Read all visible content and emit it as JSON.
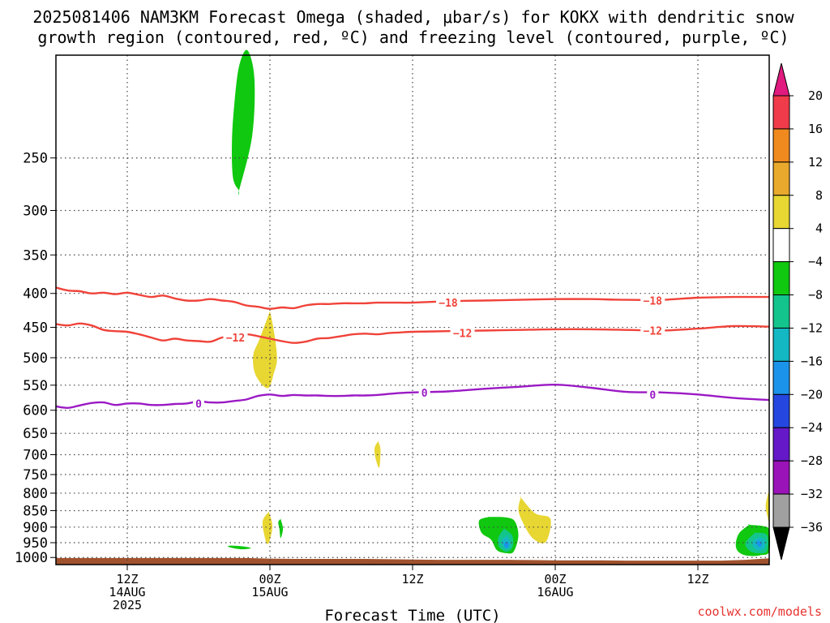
{
  "title": {
    "line1": "2025081406 NAM3KM Forecast Omega (shaded, μbar/s) for KOKX with dendritic snow",
    "line2": "growth region (contoured, red, ºC) and freezing level (contoured, purple, ºC)"
  },
  "credit": "coolwx.com/models",
  "chart_data": {
    "type": "heatmap",
    "title": "2025081406 NAM3KM Forecast Omega (shaded, μbar/s) for KOKX with dendritic snow growth region (contoured, red, ºC) and freezing level (contoured, purple, ºC)",
    "xlabel": "Forecast Time (UTC)",
    "ylabel": "",
    "x_units": "hours after 2025-08-14 06Z",
    "xlim": [
      0,
      60
    ],
    "ylim": [
      1025,
      175
    ],
    "y_scale": "log-pressure",
    "grid": true,
    "y_ticks": [
      250,
      300,
      350,
      400,
      450,
      500,
      550,
      600,
      650,
      700,
      750,
      800,
      850,
      900,
      950,
      1000
    ],
    "x_ticks": [
      {
        "x": 6,
        "lines": [
          "12Z",
          "14AUG",
          "2025"
        ]
      },
      {
        "x": 18,
        "lines": [
          "00Z",
          "15AUG"
        ]
      },
      {
        "x": 30,
        "lines": [
          "12Z"
        ]
      },
      {
        "x": 42,
        "lines": [
          "00Z",
          "16AUG"
        ]
      },
      {
        "x": 54,
        "lines": [
          "12Z"
        ]
      }
    ],
    "colorbar": {
      "labels": [
        "20",
        "16",
        "12",
        "8",
        "4",
        "−4",
        "−8",
        "−12",
        "−16",
        "−20",
        "−24",
        "−28",
        "−32",
        "−36"
      ],
      "bins": [
        {
          "color": "#ef3b4a"
        },
        {
          "color": "#f08a1e"
        },
        {
          "color": "#e9a92c"
        },
        {
          "color": "#e8d632"
        },
        {
          "color": "#ffffff"
        },
        {
          "color": "#0fc80f"
        },
        {
          "color": "#13c58c"
        },
        {
          "color": "#13b8c3"
        },
        {
          "color": "#1c93ea"
        },
        {
          "color": "#2547e0"
        },
        {
          "color": "#6418c8"
        },
        {
          "color": "#9a13b8"
        },
        {
          "color": "#a0a0a0"
        }
      ],
      "top_arrow_color": "#e01a7e",
      "bottom_arrow_color": "#000000"
    },
    "contours": [
      {
        "name": "-18",
        "color": "#f0433a",
        "x": [
          0,
          1,
          2,
          3,
          4,
          5,
          6,
          7,
          8,
          9,
          10,
          11,
          12,
          13,
          14,
          15,
          16,
          17,
          18,
          19,
          20,
          21,
          22,
          23,
          24,
          25,
          26,
          27,
          28,
          29,
          30,
          33,
          36,
          39,
          42,
          45,
          48,
          51,
          54,
          57,
          60
        ],
        "y": [
          392,
          396,
          397,
          400,
          399,
          401,
          399,
          402,
          405,
          403,
          407,
          410,
          410,
          408,
          410,
          412,
          417,
          419,
          422,
          420,
          421,
          417,
          415,
          415,
          414,
          414,
          414,
          413,
          413,
          413,
          413,
          411,
          410,
          409,
          408,
          408,
          409,
          409,
          406,
          405,
          405
        ],
        "labels": [
          {
            "x": 33,
            "y": 413,
            "text": "−18"
          },
          {
            "x": 50.2,
            "y": 410,
            "text": "−18"
          }
        ]
      },
      {
        "name": "-12",
        "color": "#f0433a",
        "x": [
          0,
          1,
          2,
          3,
          4,
          5,
          6,
          7,
          8,
          9,
          10,
          11,
          12,
          13,
          14,
          15,
          16,
          17,
          18,
          19,
          20,
          21,
          22,
          23,
          24,
          25,
          26,
          27,
          28,
          29,
          30,
          33,
          36,
          39,
          42,
          45,
          48,
          51,
          54,
          57,
          60
        ],
        "y": [
          445,
          447,
          444,
          447,
          454,
          456,
          457,
          461,
          466,
          471,
          468,
          471,
          472,
          473,
          466,
          464,
          461,
          464,
          468,
          472,
          475,
          473,
          468,
          467,
          464,
          461,
          460,
          461,
          459,
          458,
          457,
          456,
          455,
          454,
          453,
          453,
          454,
          455,
          452,
          448,
          449
        ],
        "labels": [
          {
            "x": 15.1,
            "y": 466,
            "text": "−12"
          },
          {
            "x": 34.2,
            "y": 459,
            "text": "−12"
          },
          {
            "x": 50.2,
            "y": 455,
            "text": "−12"
          }
        ]
      },
      {
        "name": "0",
        "color": "#9b19c4",
        "x": [
          0,
          1,
          2,
          3,
          4,
          5,
          6,
          7,
          8,
          9,
          10,
          11,
          12,
          13,
          14,
          15,
          16,
          17,
          18,
          19,
          20,
          21,
          22,
          23,
          24,
          25,
          26,
          27,
          28,
          29,
          30,
          33,
          36,
          39,
          42,
          45,
          48,
          51,
          54,
          57,
          60
        ],
        "y": [
          592,
          595,
          590,
          585,
          584,
          589,
          586,
          586,
          589,
          589,
          587,
          586,
          582,
          584,
          584,
          581,
          578,
          571,
          568,
          571,
          569,
          570,
          570,
          571,
          571,
          570,
          570,
          569,
          567,
          565,
          564,
          562,
          557,
          553,
          549,
          555,
          563,
          564,
          568,
          575,
          579
        ],
        "labels": [
          {
            "x": 12,
            "y": 586,
            "text": "0"
          },
          {
            "x": 31,
            "y": 564,
            "text": "0"
          },
          {
            "x": 50.2,
            "y": 568,
            "text": "0"
          }
        ]
      }
    ],
    "shaded_regions": [
      {
        "range": "-8 to -4",
        "color": "#0fc80f",
        "x": [
          15.4,
          16.5,
          16.7,
          16.1,
          15.4,
          15.0,
          14.8,
          14.9,
          15.4
        ],
        "y": [
          280,
          232,
          190,
          172,
          182,
          208,
          238,
          268,
          280
        ]
      },
      {
        "range": "4 to 8",
        "color": "#e8d632",
        "x": [
          18.0,
          18.3,
          18.6,
          18.3,
          17.9,
          17.3,
          16.7,
          16.6,
          17.1,
          17.6,
          18.0
        ],
        "y": [
          425,
          452,
          500,
          530,
          555,
          548,
          525,
          495,
          470,
          445,
          425
        ]
      },
      {
        "range": "4 to 8",
        "color": "#e8d632",
        "x": [
          27.1,
          27.3,
          27.2,
          26.9,
          26.8,
          27.1
        ],
        "y": [
          668,
          688,
          732,
          710,
          685,
          668
        ]
      },
      {
        "range": "4 to 8",
        "color": "#e8d632",
        "x": [
          17.9,
          18.2,
          18.1,
          17.8,
          17.5,
          17.4,
          17.9
        ],
        "y": [
          853,
          890,
          925,
          955,
          920,
          880,
          853
        ]
      },
      {
        "range": "-8 to -4",
        "color": "#0fc80f",
        "x": [
          18.9,
          19.1,
          18.9,
          18.8,
          18.7,
          18.9
        ],
        "y": [
          875,
          905,
          935,
          905,
          885,
          875
        ]
      },
      {
        "range": "-8 to -4",
        "color": "#0fc80f",
        "x": [
          14.6,
          15.7,
          16.4,
          15.6,
          14.6
        ],
        "y": [
          960,
          962,
          968,
          972,
          965
        ]
      },
      {
        "range": "4 to 8",
        "color": "#e8d632",
        "x": [
          39.1,
          40.3,
          41.6,
          41.2,
          40.1,
          39.2,
          38.9,
          39.1
        ],
        "y": [
          812,
          858,
          875,
          948,
          935,
          880,
          845,
          812
        ]
      },
      {
        "range": "-8 to -4",
        "color": "#0fc80f",
        "x": [
          36.4,
          37.8,
          38.6,
          38.9,
          38.5,
          37.9,
          37.1,
          36.6,
          35.8,
          35.6,
          36.4
        ],
        "y": [
          869,
          870,
          882,
          928,
          980,
          985,
          975,
          940,
          918,
          880,
          869
        ]
      },
      {
        "range": "-12 to -8",
        "color": "#13c58c",
        "x": [
          37.7,
          38.4,
          38.4,
          37.9,
          37.3,
          37.2,
          37.7
        ],
        "y": [
          905,
          928,
          965,
          980,
          965,
          935,
          905
        ]
      },
      {
        "range": "-16 to -12",
        "color": "#13b8c3",
        "x": [
          37.9,
          38.2,
          38.2,
          37.9,
          37.6,
          37.5,
          37.9
        ],
        "y": [
          928,
          945,
          965,
          972,
          962,
          945,
          928
        ]
      },
      {
        "range": "-20 to -16",
        "color": "#1c93ea",
        "x": [
          37.9,
          38.1,
          37.9,
          37.7,
          37.9
        ],
        "y": [
          945,
          955,
          968,
          955,
          945
        ]
      },
      {
        "range": "4 to 8",
        "color": "#e8d632",
        "x": [
          60,
          59.8,
          59.7,
          59.8,
          60
        ],
        "y": [
          800,
          815,
          838,
          860,
          880
        ]
      },
      {
        "range": "-8 to -4",
        "color": "#0fc80f",
        "x": [
          58.3,
          59.5,
          60,
          60,
          59.3,
          58.5,
          57.8,
          57.3,
          57.2,
          57.5,
          58.3
        ],
        "y": [
          893,
          897,
          910,
          980,
          992,
          995,
          990,
          975,
          950,
          918,
          893
        ]
      },
      {
        "range": "-12 to -8",
        "color": "#13c58c",
        "x": [
          58.8,
          59.8,
          59.8,
          59.0,
          58.3,
          58.0,
          58.8
        ],
        "y": [
          918,
          925,
          978,
          985,
          975,
          950,
          918
        ]
      },
      {
        "range": "-16 to -12",
        "color": "#13b8c3",
        "x": [
          59.1,
          59.6,
          59.6,
          59.1,
          58.7,
          58.6,
          59.1
        ],
        "y": [
          932,
          940,
          968,
          975,
          965,
          948,
          932
        ]
      },
      {
        "range": "-20 to -16",
        "color": "#1c93ea",
        "x": [
          59.1,
          59.4,
          59.2,
          58.9,
          59.1
        ],
        "y": [
          942,
          952,
          965,
          952,
          942
        ]
      }
    ],
    "surface": {
      "color": "#a0522d",
      "x": [
        0,
        8,
        16,
        18,
        20,
        22,
        24,
        26,
        28,
        30,
        32,
        34,
        36,
        38,
        40,
        42,
        44,
        46,
        48,
        50,
        52,
        54,
        56,
        58,
        60
      ],
      "y": [
        1002,
        1002,
        1002,
        1004,
        1005,
        1005,
        1005,
        1005,
        1006,
        1007,
        1008,
        1008,
        1008,
        1008,
        1009,
        1010,
        1010,
        1010,
        1011,
        1011,
        1011,
        1011,
        1011,
        1008,
        1003
      ]
    }
  }
}
